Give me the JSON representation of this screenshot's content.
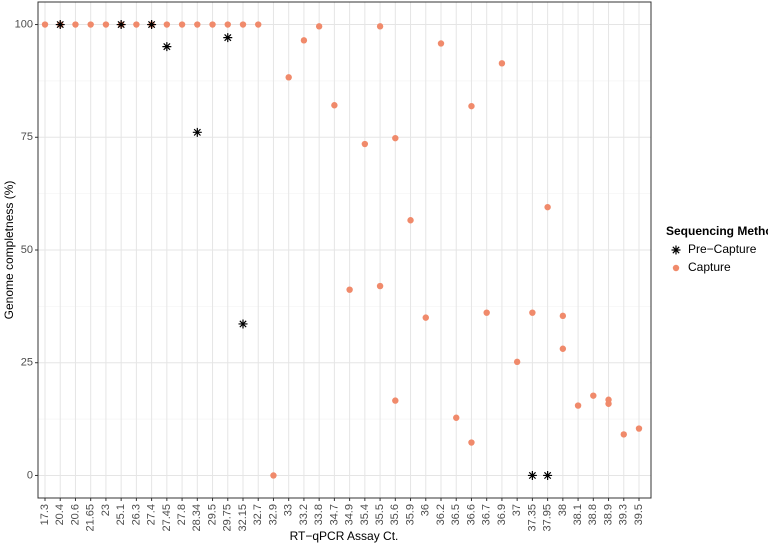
{
  "chart_data": {
    "type": "scatter",
    "x_label": "RT−qPCR Assay Ct.",
    "y_label": "Genome completness (%)",
    "categories": [
      "17.3",
      "20.4",
      "20.6",
      "21.65",
      "23",
      "25.1",
      "26.3",
      "27.4",
      "27.45",
      "27.8",
      "28.34",
      "29.5",
      "29.75",
      "32.15",
      "32.7",
      "32.9",
      "33",
      "33.2",
      "33.8",
      "34.7",
      "34.9",
      "35.4",
      "35.5",
      "35.6",
      "35.9",
      "36",
      "36.2",
      "36.5",
      "36.6",
      "36.7",
      "36.9",
      "37",
      "37.35",
      "37.95",
      "38",
      "38.1",
      "38.8",
      "38.9",
      "39.3",
      "39.5"
    ],
    "ylim": [
      -5,
      105
    ],
    "yticks": [
      0,
      25,
      50,
      75,
      100
    ],
    "grid": true,
    "legend_title": "Sequencing Method",
    "legend_position": "right",
    "series": [
      {
        "name": "Pre−Capture",
        "color": "#000000",
        "marker": "asterisk",
        "x": [
          "20.4",
          "25.1",
          "27.4",
          "27.45",
          "28.34",
          "29.75",
          "32.15",
          "37.35",
          "37.95"
        ],
        "values": [
          100,
          100,
          100,
          95.1,
          76.1,
          97.1,
          33.6,
          0,
          0
        ]
      },
      {
        "name": "Capture",
        "color": "#f08a6b",
        "marker": "circle",
        "x": [
          "17.3",
          "20.4",
          "20.6",
          "21.65",
          "23",
          "25.1",
          "26.3",
          "27.4",
          "27.45",
          "27.8",
          "28.34",
          "29.5",
          "29.75",
          "32.15",
          "32.7",
          "32.9",
          "33",
          "33.2",
          "33.8",
          "34.7",
          "34.9",
          "35.4",
          "35.5",
          "35.5",
          "35.6",
          "35.6",
          "35.9",
          "36",
          "36.2",
          "36.5",
          "36.6",
          "36.6",
          "36.7",
          "36.9",
          "37",
          "37.35",
          "37.95",
          "38",
          "38",
          "38.1",
          "38.8",
          "38.9",
          "38.9",
          "39.3",
          "39.5"
        ],
        "values": [
          100,
          100,
          100,
          100,
          100,
          100,
          100,
          100,
          100,
          100,
          100,
          100,
          100,
          100,
          100,
          0,
          88.3,
          96.5,
          99.6,
          82.1,
          41.2,
          73.5,
          99.6,
          42.0,
          74.8,
          16.6,
          56.6,
          35.0,
          95.8,
          12.8,
          81.9,
          7.3,
          36.1,
          91.4,
          25.2,
          36.1,
          59.5,
          35.4,
          28.1,
          15.5,
          17.7,
          16.8,
          15.9,
          9.1,
          10.4
        ]
      }
    ]
  }
}
